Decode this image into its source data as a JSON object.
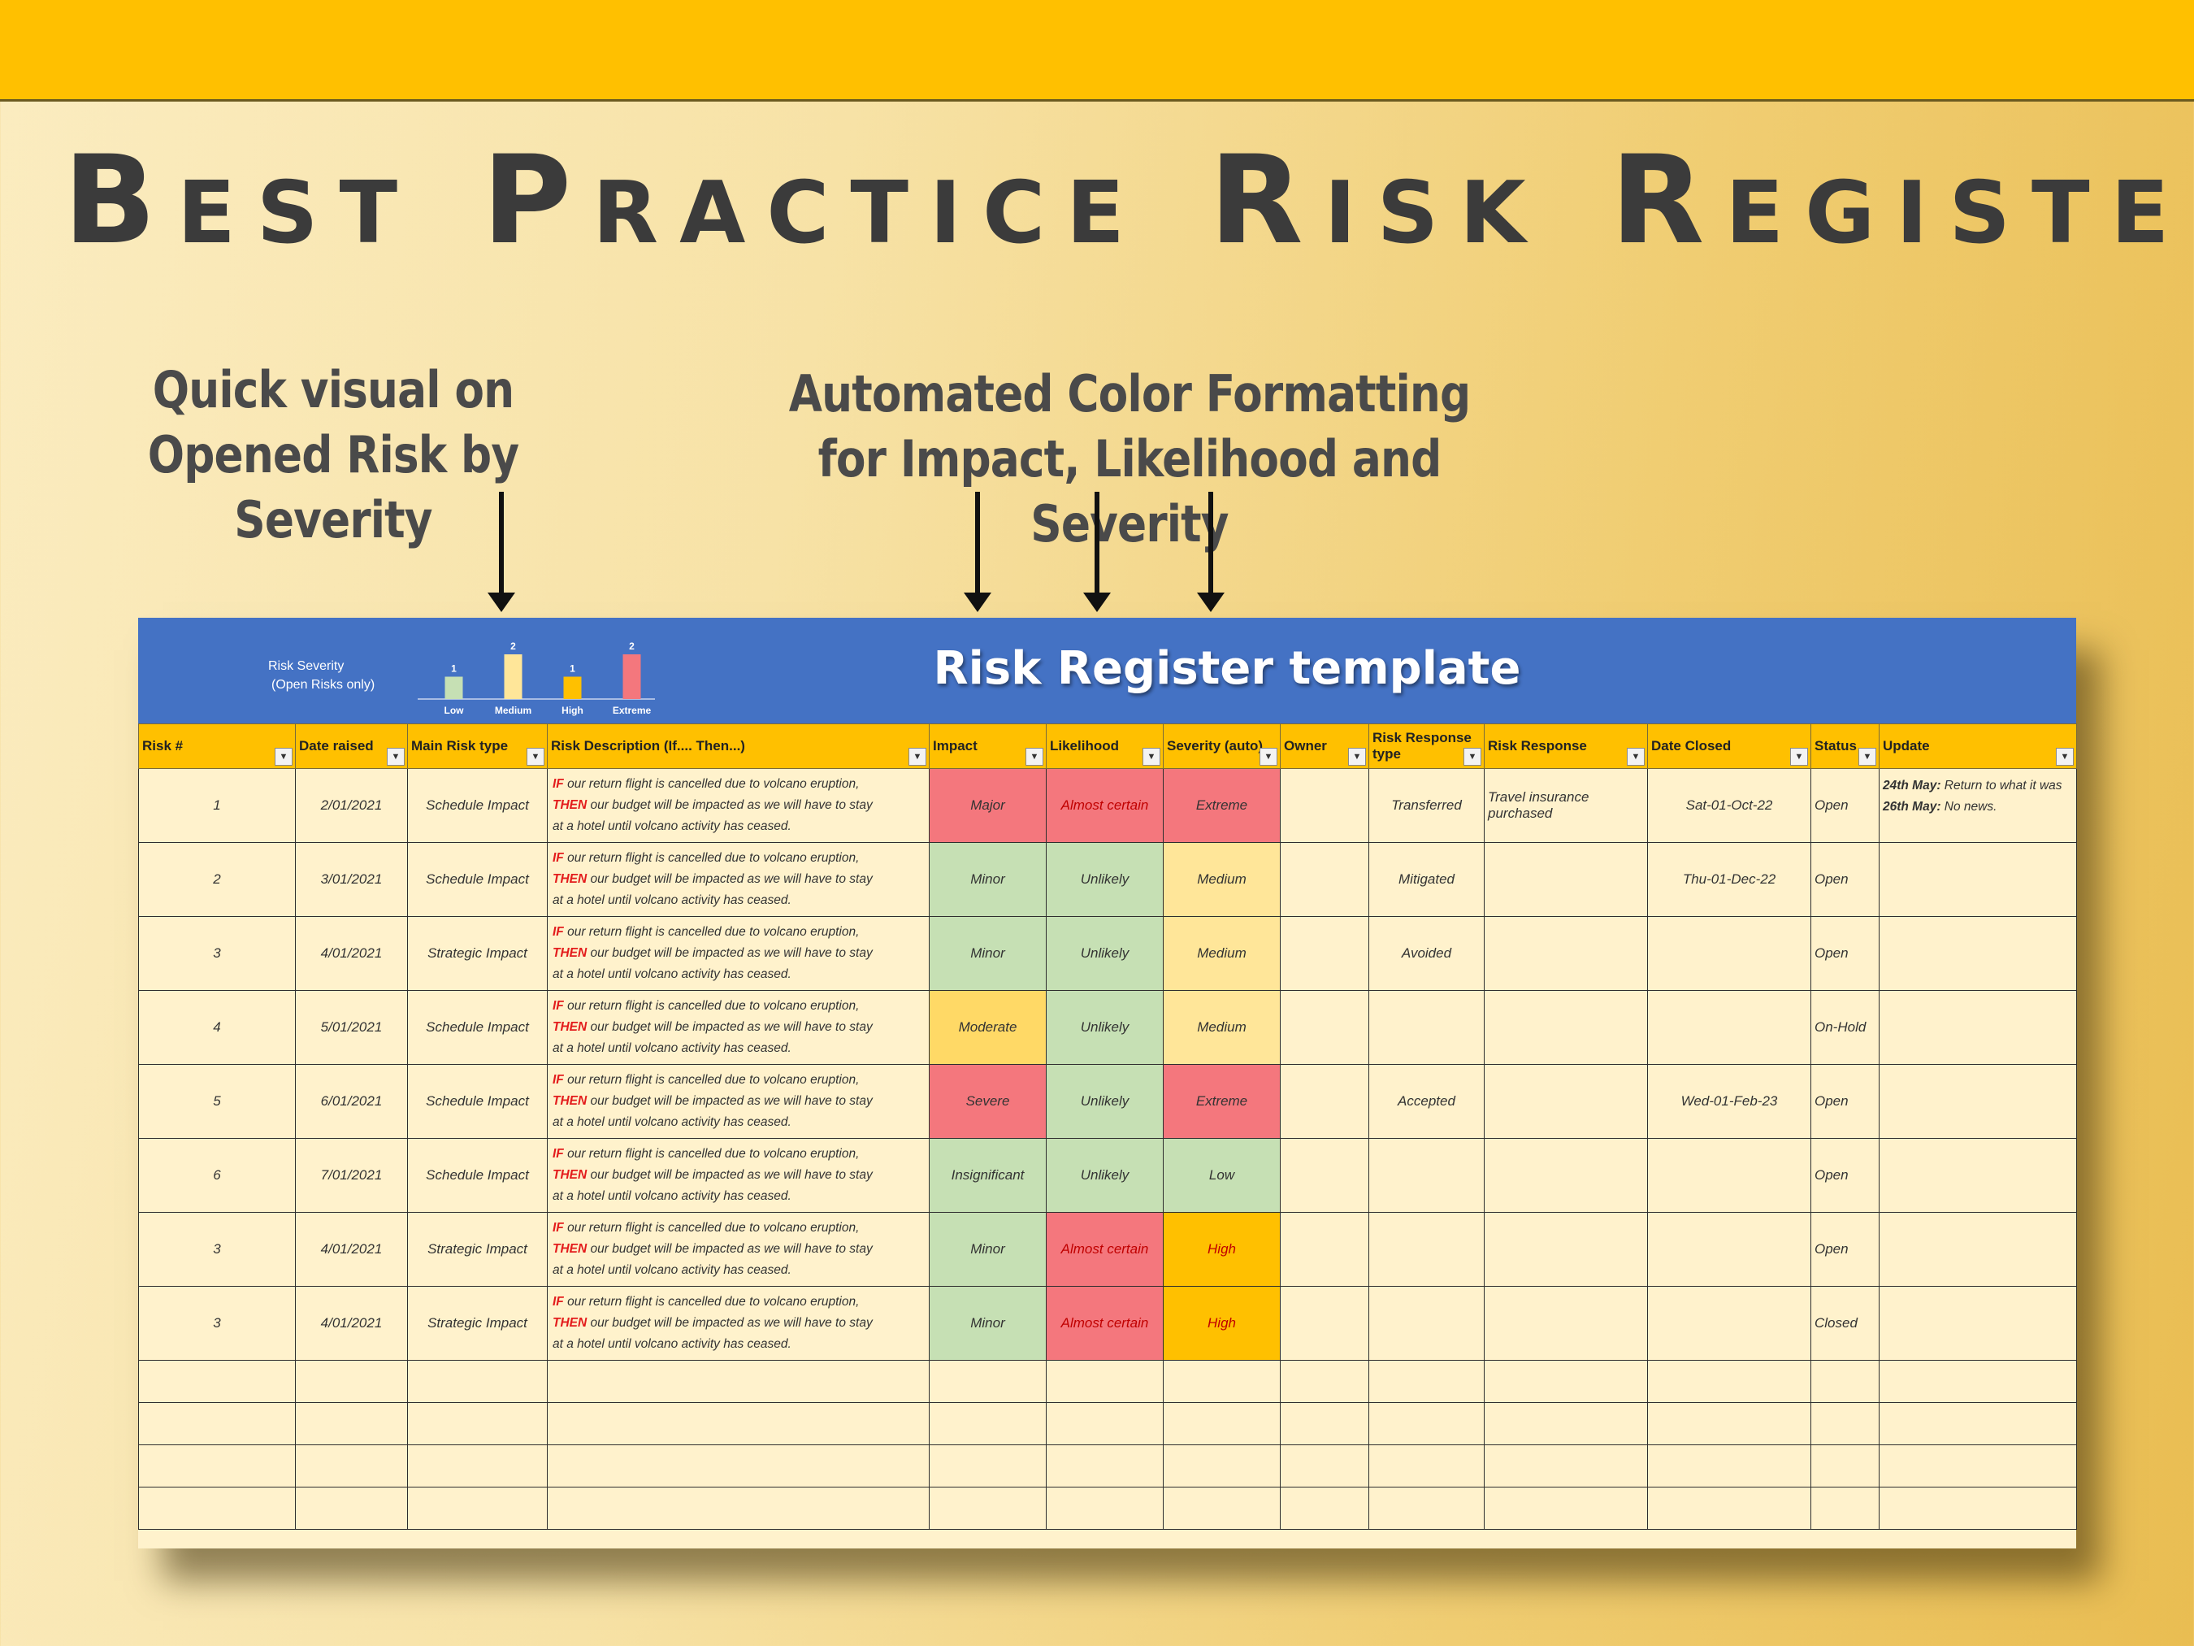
{
  "page": {
    "title": "Best Practice Risk Register",
    "callout_left": "Quick visual on Opened Risk by Severity",
    "callout_right": "Automated Color Formatting for Impact, Likelihood and Severity"
  },
  "sheet": {
    "title": "Risk Register template",
    "chart_label_line1": "Risk Severity",
    "chart_label_line2": "(Open Risks only)",
    "headers": [
      "Risk #",
      "Date raised",
      "Main Risk type",
      "Risk Description (If.... Then...)",
      "Impact",
      "Likelihood",
      "Severity  (auto)",
      "Owner",
      "Risk Response type",
      "Risk Response",
      "Date Closed",
      "Status",
      "Update"
    ],
    "desc_if": "IF",
    "desc_then": "THEN",
    "desc_line1": " our return flight is cancelled due to volcano eruption,",
    "desc_line2": " our budget will be impacted as we will have to stay",
    "desc_line3": "at a hotel until volcano activity has ceased.",
    "rows": [
      {
        "num": "1",
        "date": "2/01/2021",
        "type": "Schedule Impact",
        "impact": "Major",
        "likelihood": "Almost certain",
        "severity": "Extreme",
        "owner": "",
        "response_type": "Transferred",
        "response": "Travel insurance purchased",
        "closed": "Sat-01-Oct-22",
        "status": "Open",
        "update_date1": "24th May:",
        "update_text1": " Return to what it was",
        "update_date2": "26th May:",
        "update_text2": " No news."
      },
      {
        "num": "2",
        "date": "3/01/2021",
        "type": "Schedule Impact",
        "impact": "Minor",
        "likelihood": "Unlikely",
        "severity": "Medium",
        "owner": "",
        "response_type": "Mitigated",
        "response": "",
        "closed": "Thu-01-Dec-22",
        "status": "Open"
      },
      {
        "num": "3",
        "date": "4/01/2021",
        "type": "Strategic Impact",
        "impact": "Minor",
        "likelihood": "Unlikely",
        "severity": "Medium",
        "owner": "",
        "response_type": "Avoided",
        "response": "",
        "closed": "",
        "status": "Open"
      },
      {
        "num": "4",
        "date": "5/01/2021",
        "type": "Schedule Impact",
        "impact": "Moderate",
        "likelihood": "Unlikely",
        "severity": "Medium",
        "owner": "",
        "response_type": "",
        "response": "",
        "closed": "",
        "status": "On-Hold"
      },
      {
        "num": "5",
        "date": "6/01/2021",
        "type": "Schedule Impact",
        "impact": "Severe",
        "likelihood": "Unlikely",
        "severity": "Extreme",
        "owner": "",
        "response_type": "Accepted",
        "response": "",
        "closed": "Wed-01-Feb-23",
        "status": "Open"
      },
      {
        "num": "6",
        "date": "7/01/2021",
        "type": "Schedule Impact",
        "impact": "Insignificant",
        "likelihood": "Unlikely",
        "severity": "Low",
        "owner": "",
        "response_type": "",
        "response": "",
        "closed": "",
        "status": "Open"
      },
      {
        "num": "3",
        "date": "4/01/2021",
        "type": "Strategic Impact",
        "impact": "Minor",
        "likelihood": "Almost certain",
        "severity": "High",
        "owner": "",
        "response_type": "",
        "response": "",
        "closed": "",
        "status": "Open"
      },
      {
        "num": "3",
        "date": "4/01/2021",
        "type": "Strategic Impact",
        "impact": "Minor",
        "likelihood": "Almost certain",
        "severity": "High",
        "owner": "",
        "response_type": "",
        "response": "",
        "closed": "",
        "status": "Closed"
      }
    ],
    "empty_rows": 4
  },
  "colors": {
    "red": "#f4777d",
    "green": "#c6e0b4",
    "yellow": "#ffe699",
    "amber": "#ffc000",
    "orange": "#ffd966"
  },
  "chart_data": {
    "type": "bar",
    "categories": [
      "Low",
      "Medium",
      "High",
      "Extreme"
    ],
    "values": [
      1,
      2,
      1,
      2
    ],
    "colors": [
      "#c6e0b4",
      "#ffe699",
      "#ffc000",
      "#f4777d"
    ],
    "title": "Risk Severity",
    "subtitle": "(Open Risks only)",
    "ylim": [
      0,
      2
    ]
  }
}
